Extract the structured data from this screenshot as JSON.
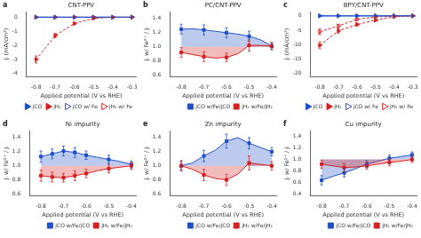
{
  "chart_data": [
    {
      "type": "line",
      "panel_label": "a",
      "title": "CNT-PPV",
      "xlabel": "Applied potential (V vs RHE)",
      "ylabel": "jᵢ (mA/cm²)",
      "xlim": [
        -0.85,
        -0.28
      ],
      "ylim": [
        -4.2,
        0.4
      ],
      "xticks": [
        -0.8,
        -0.7,
        -0.6,
        -0.5,
        -0.4,
        -0.3
      ],
      "yticks": [
        0,
        -1,
        -2,
        -3,
        -4
      ],
      "grid": false,
      "legend": "center right",
      "series": [
        {
          "name": "jCO",
          "color": "#2050c8",
          "marker": "triangle-right",
          "line_style": "solid",
          "x": [
            -0.8,
            -0.7,
            -0.6,
            -0.5,
            -0.4,
            -0.3
          ],
          "values": [
            0.0,
            0.0,
            0.0,
            0.0,
            0.0,
            0.0
          ],
          "errors": [
            0.03,
            0.03,
            0.03,
            0.03,
            0.03,
            0.03
          ]
        },
        {
          "name": "jH₂",
          "color": "#d62020",
          "marker": "triangle-right",
          "line_style": "dashed",
          "x": [
            -0.8,
            -0.7,
            -0.6,
            -0.5,
            -0.4,
            -0.3
          ],
          "values": [
            -3.0,
            -1.3,
            -0.45,
            -0.08,
            0.0,
            0.0
          ],
          "errors": [
            0.25,
            0.15,
            0.08,
            0.03,
            0.02,
            0.02
          ]
        },
        {
          "name": "jCO w/ Fe",
          "color": "#2050c8",
          "marker": "open-triangle-right",
          "line_style": "solid",
          "x": [
            -0.8,
            -0.7,
            -0.6,
            -0.5,
            -0.4,
            -0.3
          ],
          "values": [
            0.0,
            0.0,
            0.0,
            0.0,
            0.0,
            0.0
          ],
          "errors": [
            0.03,
            0.03,
            0.03,
            0.03,
            0.03,
            0.03
          ]
        },
        {
          "name": "jH₂ w/ Fe",
          "color": "#d62020",
          "marker": "open-triangle-right",
          "line_style": "dashed",
          "x": [
            -0.8,
            -0.7,
            -0.6,
            -0.5,
            -0.4,
            -0.3
          ],
          "values": [
            0.0,
            0.0,
            0.0,
            0.0,
            0.0,
            0.0
          ],
          "errors": [
            0.03,
            0.03,
            0.03,
            0.03,
            0.03,
            0.03
          ]
        }
      ]
    },
    {
      "type": "line",
      "panel_label": "b",
      "title": "PC/CNT-PPV",
      "xlabel": "Applied potential (V vs RHE)",
      "ylabel": "jᵢ w/ Fe²⁺ / jᵢ",
      "xlim": [
        -0.85,
        -0.38
      ],
      "ylim": [
        0.58,
        1.5
      ],
      "xticks": [
        -0.8,
        -0.7,
        -0.6,
        -0.5,
        -0.4
      ],
      "yticks": [
        0.6,
        0.8,
        {
          "value": 1,
          "label": "1.0"
        },
        1.2,
        1.4
      ],
      "grid": false,
      "legend": "lower right",
      "fill_to": 1.0,
      "series": [
        {
          "name": "jCO w/Fe/jCO",
          "color": "#2050c8",
          "marker": "square",
          "line_style": "solid",
          "x": [
            -0.8,
            -0.75,
            -0.7,
            -0.65,
            -0.6,
            -0.55,
            -0.5,
            -0.45,
            -0.4
          ],
          "values": [
            1.25,
            1.255,
            1.24,
            1.22,
            1.2,
            1.18,
            1.15,
            1.1,
            1.01
          ],
          "points": {
            "x": [
              -0.8,
              -0.7,
              -0.6,
              -0.5,
              -0.4
            ],
            "values": [
              1.25,
              1.24,
              1.2,
              1.15,
              1.01
            ],
            "errors": [
              0.07,
              0.07,
              0.07,
              0.07,
              0.05
            ]
          }
        },
        {
          "name": "jH₂ w/Fe/jH₂",
          "color": "#d62020",
          "marker": "square",
          "line_style": "solid",
          "x": [
            -0.8,
            -0.75,
            -0.7,
            -0.65,
            -0.6,
            -0.55,
            -0.5,
            -0.45,
            -0.4
          ],
          "values": [
            0.92,
            0.89,
            0.86,
            0.84,
            0.85,
            0.9,
            1.02,
            1.02,
            1.01
          ],
          "points": {
            "x": [
              -0.8,
              -0.7,
              -0.6,
              -0.5,
              -0.4
            ],
            "values": [
              0.92,
              0.86,
              0.85,
              1.02,
              1.01
            ],
            "errors": [
              0.07,
              0.07,
              0.06,
              0.08,
              0.05
            ]
          }
        }
      ]
    },
    {
      "type": "line",
      "panel_label": "c",
      "title": "BPY/CNT-PPV",
      "xlabel": "Applied potential (V vs RHE)",
      "ylabel": "jᵢ (mA/cm²)",
      "xlim": [
        -0.85,
        -0.28
      ],
      "ylim": [
        -21,
        1.5
      ],
      "xticks": [
        -0.8,
        -0.7,
        -0.6,
        -0.5,
        -0.4,
        -0.3
      ],
      "yticks": [
        0,
        -5,
        -10,
        -15,
        -20
      ],
      "grid": false,
      "legend": "center right",
      "series": [
        {
          "name": "jCO",
          "color": "#2050c8",
          "marker": "triangle-right",
          "line_style": "solid",
          "x": [
            -0.8,
            -0.7,
            -0.6,
            -0.5,
            -0.4,
            -0.3
          ],
          "values": [
            0.0,
            0.0,
            0.0,
            0.0,
            0.0,
            0.0
          ],
          "errors": [
            0.1,
            0.1,
            0.1,
            0.1,
            0.1,
            0.1
          ]
        },
        {
          "name": "jH₂",
          "color": "#d62020",
          "marker": "triangle-right",
          "line_style": "dashed",
          "x": [
            -0.8,
            -0.7,
            -0.6,
            -0.5,
            -0.4,
            -0.3
          ],
          "values": [
            -10.2,
            -5.2,
            -3.0,
            -1.5,
            -0.3,
            0.0
          ],
          "errors": [
            1.2,
            0.8,
            0.5,
            0.3,
            0.1,
            0.05
          ]
        },
        {
          "name": "jCO w/ Fe",
          "color": "#2050c8",
          "marker": "open-triangle-right",
          "line_style": "solid",
          "x": [
            -0.8,
            -0.7,
            -0.6,
            -0.5,
            -0.4,
            -0.3
          ],
          "values": [
            0.0,
            0.0,
            0.0,
            0.0,
            0.0,
            0.0
          ],
          "errors": [
            0.1,
            0.1,
            0.1,
            0.1,
            0.1,
            0.1
          ]
        },
        {
          "name": "jH₂ w/ Fe",
          "color": "#d62020",
          "marker": "open-triangle-right",
          "line_style": "dashed",
          "x": [
            -0.8,
            -0.7,
            -0.6,
            -0.5,
            -0.4,
            -0.3
          ],
          "values": [
            -5.5,
            -3.5,
            -1.2,
            -0.4,
            -0.05,
            0.0
          ],
          "errors": [
            1.0,
            0.6,
            0.3,
            0.15,
            0.05,
            0.03
          ]
        }
      ]
    },
    {
      "type": "line",
      "panel_label": "d",
      "title": "Ni impurity",
      "xlabel": "Applied potential (V vs RHE)",
      "ylabel": "jᵢ w/ Fe²⁺ / jᵢ",
      "xlim": [
        -0.85,
        -0.38
      ],
      "ylim": [
        0.58,
        1.5
      ],
      "xticks": [
        -0.8,
        -0.7,
        -0.6,
        -0.5,
        -0.4
      ],
      "yticks": [
        0.6,
        0.8,
        {
          "value": 1,
          "label": "1.0"
        },
        1.2,
        1.4
      ],
      "grid": false,
      "legend": "lower right",
      "fill_to": 1.0,
      "series": [
        {
          "name": "jCO w/Fe/jCO",
          "color": "#2050c8",
          "marker": "square",
          "line_style": "solid",
          "x": [
            -0.8,
            -0.75,
            -0.7,
            -0.65,
            -0.6,
            -0.55,
            -0.5,
            -0.45,
            -0.4
          ],
          "values": [
            1.13,
            1.17,
            1.21,
            1.19,
            1.15,
            1.12,
            1.09,
            1.06,
            1.02
          ],
          "points": {
            "x": [
              -0.8,
              -0.75,
              -0.7,
              -0.65,
              -0.6,
              -0.5,
              -0.4
            ],
            "values": [
              1.13,
              1.17,
              1.21,
              1.19,
              1.15,
              1.09,
              1.02
            ],
            "errors": [
              0.08,
              0.07,
              0.07,
              0.07,
              0.06,
              0.06,
              0.05
            ]
          }
        },
        {
          "name": "jH₂ w/Fe/jH₂",
          "color": "#d62020",
          "marker": "square",
          "line_style": "solid",
          "x": [
            -0.8,
            -0.75,
            -0.7,
            -0.65,
            -0.6,
            -0.55,
            -0.5,
            -0.45,
            -0.4
          ],
          "values": [
            0.86,
            0.84,
            0.83,
            0.86,
            0.89,
            0.93,
            0.96,
            0.98,
            1.0
          ],
          "points": {
            "x": [
              -0.8,
              -0.75,
              -0.7,
              -0.65,
              -0.6,
              -0.5,
              -0.4
            ],
            "values": [
              0.86,
              0.84,
              0.83,
              0.86,
              0.89,
              0.96,
              1.0
            ],
            "errors": [
              0.08,
              0.07,
              0.06,
              0.07,
              0.06,
              0.06,
              0.05
            ]
          }
        }
      ]
    },
    {
      "type": "line",
      "panel_label": "e",
      "title": "Zn impurity",
      "xlabel": "Applied potential (V vs RHE)",
      "ylabel": "jᵢ w/ Fe²⁺ / jᵢ",
      "xlim": [
        -0.85,
        -0.38
      ],
      "ylim": [
        0.58,
        1.5
      ],
      "xticks": [
        -0.8,
        -0.7,
        -0.6,
        -0.5,
        -0.4
      ],
      "yticks": [
        0.6,
        0.8,
        {
          "value": 1,
          "label": "1.0"
        },
        1.2,
        1.4
      ],
      "grid": false,
      "legend": "lower right",
      "fill_to": 1.0,
      "series": [
        {
          "name": "jCO w/Fe/jCO",
          "color": "#2050c8",
          "marker": "square",
          "line_style": "solid",
          "x": [
            -0.8,
            -0.75,
            -0.7,
            -0.65,
            -0.6,
            -0.55,
            -0.5,
            -0.45,
            -0.4
          ],
          "values": [
            1.0,
            1.04,
            1.14,
            1.22,
            1.35,
            1.4,
            1.32,
            1.26,
            1.2
          ],
          "points": {
            "x": [
              -0.8,
              -0.7,
              -0.6,
              -0.5,
              -0.4
            ],
            "values": [
              1.0,
              1.14,
              1.35,
              1.32,
              1.2
            ],
            "errors": [
              0.07,
              0.08,
              0.1,
              0.08,
              0.06
            ]
          }
        },
        {
          "name": "jH₂ w/Fe/jH₂",
          "color": "#d62020",
          "marker": "square",
          "line_style": "solid",
          "x": [
            -0.8,
            -0.75,
            -0.7,
            -0.65,
            -0.6,
            -0.55,
            -0.5,
            -0.45,
            -0.4
          ],
          "values": [
            1.0,
            0.95,
            0.87,
            0.82,
            0.8,
            0.88,
            1.04,
            1.02,
            1.0
          ],
          "points": {
            "x": [
              -0.8,
              -0.7,
              -0.6,
              -0.5,
              -0.4
            ],
            "values": [
              1.0,
              0.87,
              0.8,
              1.04,
              1.0
            ],
            "errors": [
              0.07,
              0.08,
              0.08,
              0.1,
              0.06
            ]
          }
        }
      ]
    },
    {
      "type": "line",
      "panel_label": "f",
      "title": "Cu impurity",
      "xlabel": "Applied potential (V vs RHE)",
      "ylabel": "jᵢ w/ Fe²⁺ / jᵢ",
      "xlim": [
        -0.85,
        -0.38
      ],
      "ylim": [
        0.38,
        1.5
      ],
      "xticks": [
        -0.8,
        -0.7,
        -0.6,
        -0.5,
        -0.4
      ],
      "yticks": [
        0.4,
        0.6,
        0.8,
        {
          "value": 1,
          "label": "1.0"
        },
        1.2,
        1.4
      ],
      "grid": false,
      "legend": "lower right",
      "fill_to": 1.0,
      "series": [
        {
          "name": "jCO w/Fe/jCO",
          "color": "#2050c8",
          "marker": "square",
          "line_style": "solid",
          "x": [
            -0.8,
            -0.75,
            -0.7,
            -0.65,
            -0.6,
            -0.55,
            -0.5,
            -0.45,
            -0.4
          ],
          "values": [
            0.64,
            0.71,
            0.77,
            0.84,
            0.92,
            0.97,
            1.02,
            1.05,
            1.08
          ],
          "points": {
            "x": [
              -0.8,
              -0.7,
              -0.6,
              -0.5,
              -0.4
            ],
            "values": [
              0.64,
              0.77,
              0.92,
              1.02,
              1.08
            ],
            "errors": [
              0.08,
              0.07,
              0.06,
              0.06,
              0.05
            ]
          }
        },
        {
          "name": "jH₂ w/Fe/jH₂",
          "color": "#d62020",
          "marker": "square",
          "line_style": "solid",
          "x": [
            -0.8,
            -0.75,
            -0.7,
            -0.65,
            -0.6,
            -0.55,
            -0.5,
            -0.45,
            -0.4
          ],
          "values": [
            0.92,
            0.89,
            0.86,
            0.87,
            0.89,
            0.92,
            0.95,
            0.97,
            1.0
          ],
          "points": {
            "x": [
              -0.8,
              -0.7,
              -0.6,
              -0.5,
              -0.4
            ],
            "values": [
              0.92,
              0.86,
              0.89,
              0.95,
              1.0
            ],
            "errors": [
              0.07,
              0.07,
              0.06,
              0.06,
              0.05
            ]
          }
        }
      ]
    }
  ]
}
